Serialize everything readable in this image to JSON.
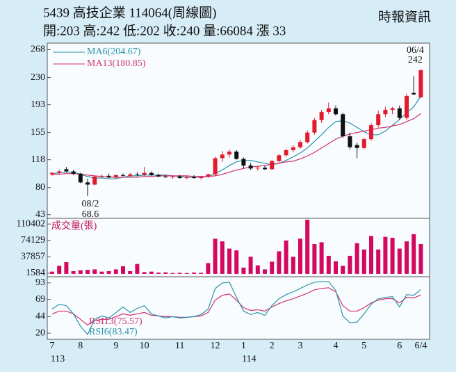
{
  "chart_data": [
    {
      "type": "candlestick",
      "title": "5439  高技企業 114064(周線圖)",
      "subtitle": "開:203 高:242 低:202 收:240 量:66084 漲 33",
      "source": "時報資訊",
      "open": [
        98,
        100,
        105,
        102,
        99,
        87,
        84,
        95,
        96,
        94,
        97,
        96,
        98,
        97,
        100,
        97,
        95,
        94,
        95,
        93,
        94,
        93,
        95,
        98,
        120,
        125,
        129,
        119,
        110,
        106,
        107,
        105,
        116,
        124,
        131,
        135,
        142,
        155,
        172,
        183,
        188,
        180,
        150,
        138,
        134,
        146,
        165,
        180,
        186,
        188,
        175,
        209,
        203
      ],
      "high": [
        101,
        104,
        108,
        104,
        100,
        92,
        96,
        98,
        99,
        98,
        99,
        100,
        101,
        108,
        102,
        99,
        97,
        96,
        97,
        96,
        97,
        96,
        99,
        122,
        130,
        132,
        131,
        121,
        113,
        109,
        110,
        118,
        126,
        133,
        138,
        145,
        158,
        175,
        186,
        196,
        192,
        182,
        155,
        141,
        148,
        168,
        185,
        190,
        190,
        192,
        208,
        232,
        242
      ],
      "low": [
        96,
        98,
        101,
        97,
        86,
        68.6,
        83,
        93,
        93,
        92,
        95,
        94,
        96,
        95,
        96,
        94,
        93,
        92,
        92,
        91,
        92,
        91,
        93,
        96,
        115,
        121,
        118,
        106,
        104,
        103,
        104,
        104,
        114,
        122,
        128,
        133,
        140,
        152,
        168,
        180,
        178,
        148,
        132,
        120,
        132,
        144,
        162,
        176,
        180,
        172,
        172,
        206,
        202
      ],
      "close": [
        100,
        102,
        102,
        99,
        87,
        84,
        95,
        96,
        94,
        97,
        96,
        98,
        97,
        100,
        97,
        95,
        94,
        95,
        93,
        94,
        93,
        95,
        98,
        120,
        125,
        129,
        119,
        110,
        106,
        107,
        105,
        116,
        124,
        131,
        135,
        142,
        155,
        172,
        183,
        188,
        180,
        150,
        135,
        134,
        146,
        165,
        180,
        186,
        188,
        175,
        205,
        207,
        240
      ],
      "up_color": "#e31a2d",
      "down_color": "#111111",
      "series": [
        {
          "name": "MA6(204.67)",
          "color": "#2a93a8",
          "values": [
            99,
            100,
            101,
            101,
            98,
            95,
            93,
            93,
            92,
            92,
            94,
            96,
            96,
            97,
            97,
            97,
            97,
            96,
            95,
            94,
            94,
            94,
            95,
            99,
            104,
            110,
            115,
            117,
            117,
            115,
            113,
            111,
            113,
            117,
            122,
            127,
            134,
            143,
            152,
            162,
            170,
            171,
            168,
            162,
            156,
            152,
            152,
            157,
            165,
            173,
            182,
            190,
            204.67
          ]
        },
        {
          "name": "MA13(180.85)",
          "color": "#d2306e",
          "values": [
            98,
            98,
            99,
            99,
            98,
            97,
            96,
            95,
            94,
            94,
            94,
            94,
            94,
            95,
            95,
            96,
            96,
            96,
            96,
            96,
            95,
            95,
            95,
            96,
            98,
            101,
            104,
            106,
            108,
            109,
            110,
            112,
            113,
            115,
            116,
            119,
            123,
            128,
            134,
            140,
            146,
            150,
            153,
            155,
            157,
            159,
            161,
            162,
            164,
            166,
            170,
            174,
            180.85
          ]
        }
      ],
      "annotations": {
        "low": {
          "date": "08/2",
          "price": "68.6"
        },
        "high": {
          "date": "06/4",
          "price": "242"
        }
      },
      "ylim": [
        38,
        277
      ],
      "yticks": [
        268,
        230,
        193,
        155,
        118,
        80,
        43
      ]
    },
    {
      "type": "bar",
      "title": "成交量(張)",
      "color": "#d4085f",
      "values": [
        5000,
        18000,
        26000,
        6000,
        8000,
        9000,
        10000,
        5000,
        6000,
        10000,
        17000,
        6000,
        22000,
        4000,
        5000,
        3000,
        3500,
        2000,
        2500,
        2000,
        3000,
        2500,
        24000,
        78000,
        72000,
        56000,
        52000,
        14000,
        38000,
        19000,
        10000,
        27000,
        50000,
        74000,
        38000,
        78000,
        120000,
        66000,
        70000,
        40000,
        28000,
        18000,
        40000,
        68000,
        54000,
        84000,
        54000,
        82000,
        80000,
        56000,
        72000,
        88000,
        66084
      ],
      "ylim": [
        -6300,
        123000
      ],
      "yticks": [
        110402,
        74129,
        37857,
        1584
      ]
    },
    {
      "type": "line",
      "series": [
        {
          "name": "RSI13(75.57)",
          "color": "#d2306e",
          "values": [
            48,
            52,
            52,
            48,
            40,
            32,
            38,
            40,
            40,
            44,
            48,
            46,
            48,
            50,
            46,
            45,
            44,
            44,
            43,
            43,
            44,
            45,
            50,
            68,
            75,
            77,
            68,
            57,
            53,
            54,
            52,
            58,
            63,
            67,
            70,
            74,
            78,
            83,
            85,
            86,
            80,
            60,
            52,
            52,
            57,
            64,
            68,
            70,
            70,
            64,
            72,
            71,
            75.57
          ]
        },
        {
          "name": "RSI6(83.47)",
          "color": "#2a93a8",
          "values": [
            55,
            62,
            60,
            48,
            30,
            18,
            40,
            45,
            42,
            50,
            58,
            50,
            56,
            60,
            48,
            45,
            42,
            44,
            42,
            43,
            44,
            47,
            55,
            85,
            93,
            94,
            72,
            52,
            47,
            50,
            46,
            60,
            70,
            76,
            80,
            85,
            90,
            94,
            95,
            95,
            82,
            45,
            35,
            36,
            48,
            62,
            70,
            72,
            73,
            58,
            76,
            75,
            83.47
          ]
        }
      ],
      "categories": [
        "7",
        null,
        null,
        null,
        "8",
        null,
        null,
        null,
        null,
        "9",
        null,
        null,
        null,
        "10",
        null,
        null,
        null,
        null,
        "11",
        null,
        null,
        null,
        null,
        "12",
        null,
        null,
        null,
        "1",
        null,
        null,
        null,
        "2",
        null,
        null,
        null,
        "3",
        null,
        null,
        null,
        null,
        "4",
        null,
        null,
        null,
        "5",
        null,
        null,
        null,
        null,
        "6",
        null,
        null,
        "6/4"
      ],
      "category_years": [
        "113",
        null,
        null,
        null,
        null,
        null,
        null,
        null,
        null,
        null,
        null,
        null,
        null,
        null,
        null,
        null,
        null,
        null,
        null,
        null,
        null,
        null,
        null,
        null,
        null,
        null,
        null,
        "114",
        null,
        null,
        null,
        null,
        null,
        null,
        null,
        null,
        null,
        null,
        null,
        null,
        null,
        null,
        null,
        null,
        null,
        null,
        null,
        null,
        null,
        null,
        null,
        null,
        null
      ],
      "ylim": [
        11,
        102
      ],
      "yticks": [
        93,
        69,
        44,
        20
      ]
    }
  ]
}
